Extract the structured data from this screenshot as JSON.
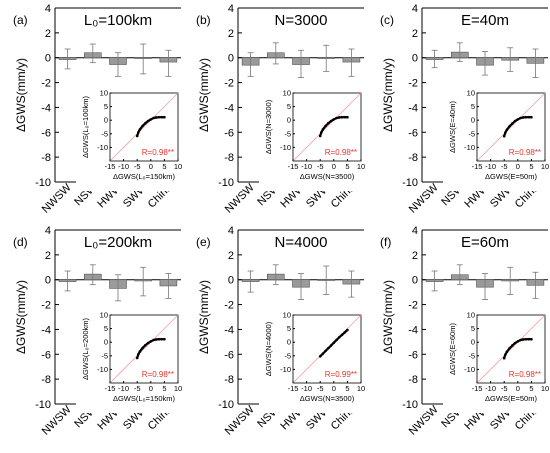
{
  "chart_data": [
    {
      "type": "bar",
      "panel_label": "(a)",
      "title": "L₀=100km",
      "ylabel": "ΔGWS(mm/y)",
      "categories": [
        "NWSW",
        "NSW",
        "HWW",
        "SWW",
        "China"
      ],
      "values": [
        -0.15,
        0.4,
        -0.55,
        -0.05,
        -0.35
      ],
      "error_low": [
        -0.9,
        -0.4,
        -1.5,
        -1.3,
        -1.5
      ],
      "error_high": [
        0.7,
        1.1,
        0.4,
        1.1,
        0.6
      ],
      "ylim": [
        -10,
        4
      ],
      "yticks": [
        4,
        2,
        0,
        -2,
        -4,
        -6,
        -8,
        -10
      ],
      "inset": {
        "type": "scatter",
        "xlabel": "ΔGWS(L₀=150km)",
        "ylabel": "ΔGWS(L₀=100km)",
        "xticks": [
          -15,
          -10,
          -5,
          0,
          5,
          10
        ],
        "yticks": [
          -15,
          -10,
          -5,
          0,
          5,
          10
        ],
        "xlim": [
          -15,
          10
        ],
        "ylim": [
          -15,
          10
        ],
        "annotation": "R=0.98**",
        "x": [
          -5,
          -4.6,
          -4,
          -3,
          -2,
          -1,
          0,
          1,
          2,
          3,
          4,
          5
        ],
        "y": [
          -5.8,
          -4.5,
          -3.4,
          -2.1,
          -1.1,
          -0.3,
          0.3,
          0.8,
          1.0,
          1.1,
          1.1,
          1.1
        ]
      }
    },
    {
      "type": "bar",
      "panel_label": "(b)",
      "title": "N=3000",
      "ylabel": "ΔGWS(mm/y)",
      "categories": [
        "NWSW",
        "NSW",
        "HWW",
        "SWW",
        "China"
      ],
      "values": [
        -0.6,
        0.4,
        -0.55,
        -0.05,
        -0.35
      ],
      "error_low": [
        -1.5,
        -0.5,
        -1.6,
        -1.1,
        -1.5
      ],
      "error_high": [
        0.4,
        1.2,
        0.6,
        1.0,
        0.7
      ],
      "ylim": [
        -10,
        4
      ],
      "yticks": [
        4,
        2,
        0,
        -2,
        -4,
        -6,
        -8,
        -10
      ],
      "inset": {
        "type": "scatter",
        "xlabel": "ΔGWS(N=3500)",
        "ylabel": "ΔGWS(N=3000)",
        "xticks": [
          -15,
          -10,
          -5,
          0,
          5,
          10
        ],
        "yticks": [
          -15,
          -10,
          -5,
          0,
          5,
          10
        ],
        "xlim": [
          -15,
          10
        ],
        "ylim": [
          -15,
          10
        ],
        "annotation": "R=0.98**",
        "x": [
          -5,
          -4.6,
          -4,
          -3,
          -2,
          -1,
          0,
          1,
          2,
          3,
          4,
          5
        ],
        "y": [
          -5.8,
          -4.5,
          -3.4,
          -2.1,
          -1.1,
          -0.3,
          0.3,
          0.8,
          1.0,
          1.1,
          1.1,
          1.1
        ]
      }
    },
    {
      "type": "bar",
      "panel_label": "(c)",
      "title": "E=40m",
      "ylabel": "ΔGWS(mm/y)",
      "categories": [
        "NWSW",
        "NSW",
        "HWW",
        "SWW",
        "China"
      ],
      "values": [
        -0.15,
        0.45,
        -0.6,
        -0.2,
        -0.45
      ],
      "error_low": [
        -0.8,
        -0.3,
        -1.4,
        -1.1,
        -1.6
      ],
      "error_high": [
        0.6,
        1.2,
        0.5,
        0.8,
        0.7
      ],
      "ylim": [
        -10,
        4
      ],
      "yticks": [
        4,
        2,
        0,
        -2,
        -4,
        -6,
        -8,
        -10
      ],
      "inset": {
        "type": "scatter",
        "xlabel": "ΔGWS(E=50m)",
        "ylabel": "ΔGWS(E=40m)",
        "xticks": [
          -15,
          -10,
          -5,
          0,
          5,
          10
        ],
        "yticks": [
          -15,
          -10,
          -5,
          0,
          5,
          10
        ],
        "xlim": [
          -15,
          10
        ],
        "ylim": [
          -15,
          10
        ],
        "annotation": "R=0.98**",
        "x": [
          -5,
          -4.6,
          -4,
          -3,
          -2,
          -1,
          0,
          1,
          2,
          3,
          4,
          5
        ],
        "y": [
          -5.9,
          -4.6,
          -3.5,
          -2.2,
          -1.2,
          -0.3,
          0.3,
          0.8,
          1.0,
          1.1,
          1.1,
          1.1
        ]
      }
    },
    {
      "type": "bar",
      "panel_label": "(d)",
      "title": "L₀=200km",
      "ylabel": "ΔGWS(mm/y)",
      "categories": [
        "NWSW",
        "NSW",
        "HWW",
        "SWW",
        "China"
      ],
      "values": [
        -0.15,
        0.45,
        -0.7,
        -0.1,
        -0.5
      ],
      "error_low": [
        -0.9,
        -0.4,
        -1.7,
        -1.3,
        -1.5
      ],
      "error_high": [
        0.7,
        1.2,
        0.4,
        1.0,
        0.5
      ],
      "ylim": [
        -10,
        4
      ],
      "yticks": [
        4,
        2,
        0,
        -2,
        -4,
        -6,
        -8,
        -10
      ],
      "inset": {
        "type": "scatter",
        "xlabel": "ΔGWS(L₀=150km)",
        "ylabel": "ΔGWS(L₀=200km)",
        "xticks": [
          -15,
          -10,
          -5,
          0,
          5,
          10
        ],
        "yticks": [
          -15,
          -10,
          -5,
          0,
          5,
          10
        ],
        "xlim": [
          -15,
          10
        ],
        "ylim": [
          -15,
          10
        ],
        "annotation": "R=0.98**",
        "x": [
          -5,
          -4.6,
          -4,
          -3,
          -2,
          -1,
          0,
          1,
          2,
          3,
          4,
          5
        ],
        "y": [
          -5.8,
          -4.5,
          -3.4,
          -2.1,
          -1.1,
          -0.3,
          0.3,
          0.8,
          1.0,
          1.1,
          1.1,
          1.1
        ]
      }
    },
    {
      "type": "bar",
      "panel_label": "(e)",
      "title": "N=4000",
      "ylabel": "ΔGWS(mm/y)",
      "categories": [
        "NWSW",
        "NSW",
        "HWW",
        "SWW",
        "China"
      ],
      "values": [
        -0.15,
        0.45,
        -0.6,
        -0.05,
        -0.35
      ],
      "error_low": [
        -1.0,
        -0.4,
        -1.6,
        -1.2,
        -1.4
      ],
      "error_high": [
        0.7,
        1.2,
        0.5,
        1.1,
        0.7
      ],
      "ylim": [
        -10,
        4
      ],
      "yticks": [
        4,
        2,
        0,
        -2,
        -4,
        -6,
        -8,
        -10
      ],
      "inset": {
        "type": "scatter",
        "xlabel": "ΔGWS(N=3500)",
        "ylabel": "ΔGWS(N=4000)",
        "xticks": [
          -15,
          -10,
          -5,
          0,
          5,
          10
        ],
        "yticks": [
          -15,
          -10,
          -5,
          0,
          5,
          10
        ],
        "xlim": [
          -15,
          10
        ],
        "ylim": [
          -15,
          10
        ],
        "annotation": "R=0.99**",
        "x": [
          -5,
          -4,
          -3,
          -2,
          -1,
          0,
          1,
          2,
          3,
          4,
          5
        ],
        "y": [
          -5.2,
          -4.2,
          -3.2,
          -2.2,
          -1.2,
          -0.2,
          0.8,
          1.8,
          2.7,
          3.6,
          4.5
        ]
      }
    },
    {
      "type": "bar",
      "panel_label": "(f)",
      "title": "E=60m",
      "ylabel": "ΔGWS(mm/y)",
      "categories": [
        "NWSW",
        "NSW",
        "HWW",
        "SWW",
        "China"
      ],
      "values": [
        -0.15,
        0.4,
        -0.6,
        -0.1,
        -0.45
      ],
      "error_low": [
        -0.9,
        -0.4,
        -1.6,
        -1.2,
        -1.5
      ],
      "error_high": [
        0.7,
        1.2,
        0.5,
        1.0,
        0.6
      ],
      "ylim": [
        -10,
        4
      ],
      "yticks": [
        4,
        2,
        0,
        -2,
        -4,
        -6,
        -8,
        -10
      ],
      "inset": {
        "type": "scatter",
        "xlabel": "ΔGWS(E=50m)",
        "ylabel": "ΔGWS(E=60m)",
        "xticks": [
          -15,
          -10,
          -5,
          0,
          5,
          10
        ],
        "yticks": [
          -15,
          -10,
          -5,
          0,
          5,
          10
        ],
        "xlim": [
          -15,
          10
        ],
        "ylim": [
          -15,
          10
        ],
        "annotation": "R=0.98**",
        "x": [
          -5,
          -4.6,
          -4,
          -3,
          -2,
          -1,
          0,
          1,
          2,
          3,
          4,
          5
        ],
        "y": [
          -5.9,
          -4.6,
          -3.5,
          -2.2,
          -1.2,
          -0.3,
          0.3,
          0.8,
          1.0,
          1.1,
          1.1,
          1.1
        ]
      }
    }
  ]
}
